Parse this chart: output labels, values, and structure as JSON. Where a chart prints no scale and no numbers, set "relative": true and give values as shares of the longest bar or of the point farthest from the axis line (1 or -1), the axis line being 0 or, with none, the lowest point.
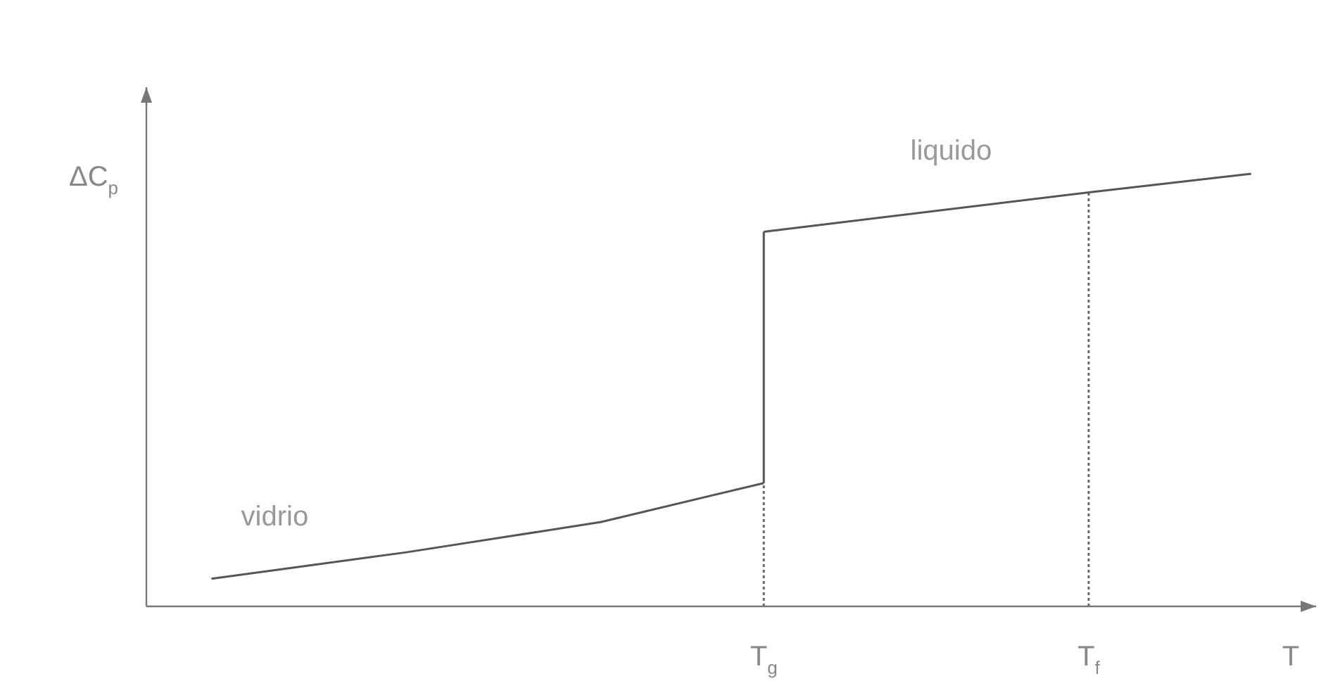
{
  "chart_data": {
    "type": "line",
    "relative": true,
    "xlabel": "T",
    "ylabel": "ΔC$_{p}$",
    "categories": [
      null,
      null,
      null,
      null,
      null,
      null,
      null,
      null,
      null,
      null,
      null,
      null,
      null,
      null,
      null,
      null,
      null,
      null,
      null,
      "T$_{g}$",
      null,
      null,
      null,
      null,
      null,
      null,
      null,
      null,
      null,
      "T$_{f}$",
      null,
      null,
      null,
      null,
      null,
      null,
      null
    ],
    "grid": false,
    "legend": false,
    "marker": "none",
    "series": [
      {
        "name": "vidrio",
        "color": "#555555",
        "values": [
          null,
          null,
          0.064,
          null,
          null,
          null,
          null,
          null,
          0.125,
          null,
          null,
          null,
          null,
          null,
          0.195,
          null,
          null,
          null,
          null,
          0.285,
          null,
          null,
          null,
          null,
          null,
          null,
          null,
          null,
          null,
          null,
          null,
          null,
          null,
          null,
          null,
          null,
          null
        ]
      },
      {
        "name": "liquido",
        "color": "#555555",
        "values": [
          null,
          null,
          null,
          null,
          null,
          null,
          null,
          null,
          null,
          null,
          null,
          null,
          null,
          null,
          null,
          null,
          null,
          null,
          null,
          0.866,
          null,
          null,
          null,
          null,
          null,
          null,
          null,
          null,
          null,
          0.957,
          null,
          null,
          null,
          null,
          1,
          null,
          null
        ]
      },
      {
        "color": "#555555",
        "x": [
          "T$_{g}$",
          "T$_{g}$"
        ],
        "values": [
          0.285,
          0.866
        ]
      },
      {
        "color": "#666666",
        "line_style": "dotted",
        "x": [
          "T$_{g}$",
          "T$_{g}$"
        ],
        "values": [
          0,
          0.285
        ]
      }
    ],
    "ref_lines": [
      {
        "axis": "x",
        "value": "T$_{f}$",
        "line_style": "dotted",
        "color": "#666666"
      }
    ]
  }
}
